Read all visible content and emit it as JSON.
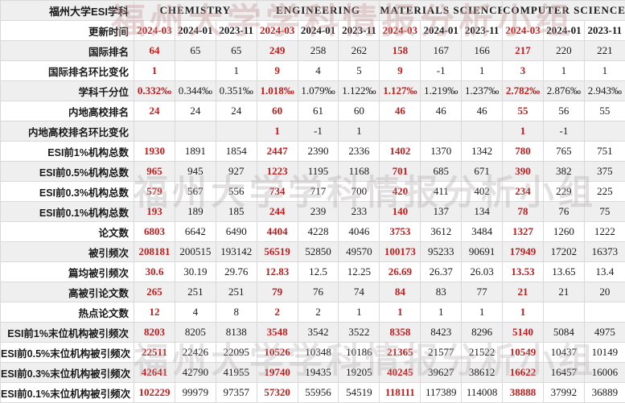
{
  "title": "福州大学ESI学科",
  "watermark": {
    "text": "福州大学学科情报分析小组"
  },
  "colors": {
    "highlight_red": "#bf1d1d",
    "text": "#1a1a1a",
    "stripe": "#efefef",
    "border": "#d9d9d9"
  },
  "subjects": [
    {
      "name": "CHEMISTRY"
    },
    {
      "name": "ENGINEERING"
    },
    {
      "name": "MATERIALS SCIENCE"
    },
    {
      "name": "COMPUTER SCIENCE"
    }
  ],
  "rows": [
    {
      "label": "更新时间",
      "values": [
        "2024-03",
        "2024-01",
        "2023-11",
        "2024-03",
        "2024-01",
        "2023-11",
        "2024-03",
        "2024-01",
        "2023-11",
        "2024-03",
        "2024-01",
        "2023-11"
      ]
    },
    {
      "label": "国际排名",
      "values": [
        "64",
        "65",
        "65",
        "249",
        "258",
        "262",
        "158",
        "167",
        "166",
        "217",
        "220",
        "221"
      ]
    },
    {
      "label": "国际排名环比变化",
      "values": [
        "1",
        "",
        "1",
        "9",
        "4",
        "5",
        "9",
        "-1",
        "1",
        "3",
        "1",
        "1"
      ]
    },
    {
      "label": "学科千分位",
      "values": [
        "0.332‰",
        "0.344‰",
        "0.351‰",
        "1.018‰",
        "1.079‰",
        "1.122‰",
        "1.127‰",
        "1.219‰",
        "1.237‰",
        "2.782‰",
        "2.876‰",
        "2.943‰"
      ]
    },
    {
      "label": "内地高校排名",
      "values": [
        "24",
        "24",
        "24",
        "60",
        "61",
        "60",
        "46",
        "46",
        "46",
        "55",
        "56",
        "55"
      ]
    },
    {
      "label": "内地高校排名环比变化",
      "values": [
        "",
        "",
        "",
        "1",
        "-1",
        "1",
        "",
        "",
        "",
        "1",
        "-1",
        ""
      ]
    },
    {
      "label": "ESI前1%机构总数",
      "values": [
        "1930",
        "1891",
        "1854",
        "2447",
        "2390",
        "2336",
        "1402",
        "1370",
        "1342",
        "780",
        "765",
        "751"
      ]
    },
    {
      "label": "ESI前0.5%机构总数",
      "values": [
        "965",
        "945",
        "927",
        "1223",
        "1195",
        "1168",
        "701",
        "685",
        "671",
        "390",
        "382",
        "375"
      ]
    },
    {
      "label": "ESI前0.3%机构总数",
      "values": [
        "579",
        "567",
        "556",
        "734",
        "717",
        "700",
        "420",
        "411",
        "402",
        "234",
        "229",
        "225"
      ]
    },
    {
      "label": "ESI前0.1%机构总数",
      "values": [
        "193",
        "189",
        "185",
        "244",
        "239",
        "233",
        "140",
        "137",
        "134",
        "78",
        "76",
        "75"
      ]
    },
    {
      "label": "论文数",
      "values": [
        "6803",
        "6642",
        "6490",
        "4404",
        "4228",
        "4046",
        "3753",
        "3612",
        "3484",
        "1327",
        "1260",
        "1222"
      ]
    },
    {
      "label": "被引频次",
      "values": [
        "208181",
        "200515",
        "193142",
        "56519",
        "52850",
        "49570",
        "100173",
        "95233",
        "90691",
        "17949",
        "17202",
        "16373"
      ]
    },
    {
      "label": "篇均被引频次",
      "values": [
        "30.6",
        "30.19",
        "29.76",
        "12.83",
        "12.5",
        "12.25",
        "26.69",
        "26.37",
        "26.03",
        "13.53",
        "13.65",
        "13.4"
      ]
    },
    {
      "label": "高被引论文数",
      "values": [
        "265",
        "251",
        "251",
        "79",
        "76",
        "74",
        "84",
        "83",
        "77",
        "21",
        "21",
        "20"
      ]
    },
    {
      "label": "热点论文数",
      "values": [
        "12",
        "4",
        "8",
        "2",
        "2",
        "1",
        "1",
        "1",
        "1",
        "1",
        "",
        ""
      ]
    },
    {
      "label": "ESI前1%末位机构被引频次",
      "values": [
        "8203",
        "8205",
        "8138",
        "3548",
        "3542",
        "3522",
        "8358",
        "8423",
        "8296",
        "5140",
        "5084",
        "4975"
      ]
    },
    {
      "label": "ESI前0.5%末位机构被引频次",
      "values": [
        "22511",
        "22426",
        "22095",
        "10526",
        "10348",
        "10186",
        "21365",
        "21577",
        "21522",
        "10549",
        "10437",
        "10149"
      ]
    },
    {
      "label": "ESI前0.3%末位机构被引频次",
      "values": [
        "42641",
        "42790",
        "41955",
        "19740",
        "19435",
        "19205",
        "40245",
        "39627",
        "38612",
        "16622",
        "16457",
        "16006"
      ]
    },
    {
      "label": "ESI前0.1%末位机构被引频次",
      "values": [
        "102229",
        "99979",
        "97357",
        "57320",
        "55956",
        "54519",
        "118111",
        "117389",
        "114008",
        "38888",
        "37992",
        "36889"
      ]
    }
  ]
}
